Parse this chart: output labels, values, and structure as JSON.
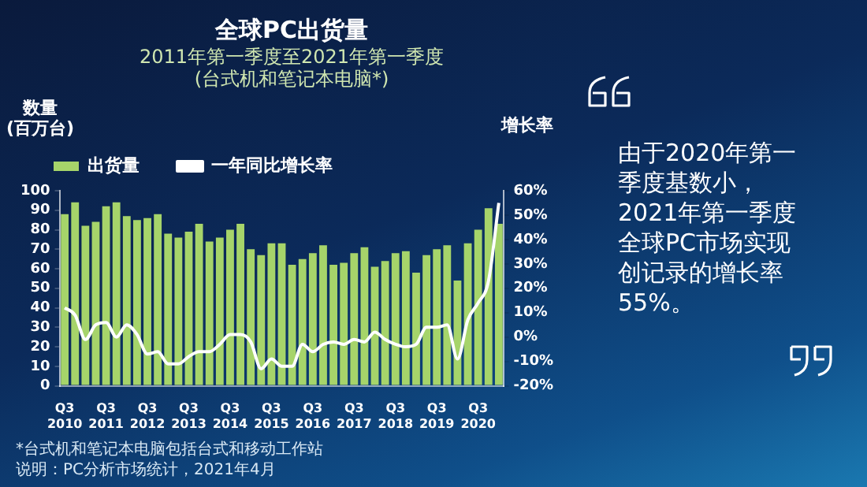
{
  "chart_data": {
    "type": "bar",
    "title": "全球PC出货量",
    "subtitle": "2011年第一季度至2021年第一季度\n(台式机和笔记本电脑*)",
    "ylabel": "数量\n(百万台)",
    "y2label": "增长率",
    "categories": [
      "Q3 2010",
      null,
      null,
      null,
      "Q3 2011",
      null,
      null,
      null,
      "Q3 2012",
      null,
      null,
      null,
      "Q3 2013",
      null,
      null,
      null,
      "Q3 2014",
      null,
      null,
      null,
      "Q3 2015",
      null,
      null,
      null,
      "Q3 2016",
      null,
      null,
      null,
      "Q3 2017",
      null,
      null,
      null,
      "Q3 2018",
      null,
      null,
      null,
      "Q3 2019",
      null,
      null,
      null,
      "Q3 2020",
      null,
      null
    ],
    "series": [
      {
        "name": "出货量",
        "color": "#a6d46a",
        "values": [
          88,
          94,
          82,
          84,
          92,
          94,
          87,
          85,
          86,
          88,
          78,
          76,
          79,
          83,
          74,
          76,
          80,
          83,
          70,
          67,
          73,
          73,
          62,
          65,
          68,
          72,
          62,
          63,
          68,
          71,
          61,
          64,
          68,
          69,
          58,
          67,
          70,
          72,
          54,
          73,
          80,
          91,
          83
        ]
      },
      {
        "name": "一年同比增长率",
        "type": "line",
        "axis": "y2",
        "color": "#ffffff",
        "values": [
          12,
          9,
          -1,
          5,
          6,
          0,
          5,
          1,
          -7,
          -6,
          -11,
          -11,
          -8,
          -6,
          -6,
          -3,
          1,
          1,
          -2,
          -13,
          -9,
          -12,
          -12,
          -3,
          -6,
          -3,
          -2,
          -3,
          -1,
          -2,
          2,
          -1,
          -3,
          -4,
          -3,
          4,
          4,
          5,
          -9,
          7,
          14,
          23,
          55
        ]
      }
    ],
    "ylim": [
      0,
      100
    ],
    "yticks": [
      0,
      10,
      20,
      30,
      40,
      50,
      60,
      70,
      80,
      90,
      100
    ],
    "y2lim": [
      -20,
      60
    ],
    "y2ticks": [
      {
        "value": -20,
        "label": "-20%"
      },
      {
        "value": -10,
        "label": "-10%"
      },
      {
        "value": 0,
        "label": "0%"
      },
      {
        "value": 10,
        "label": "10%"
      },
      {
        "value": 20,
        "label": "20%"
      },
      {
        "value": 30,
        "label": "30%"
      },
      {
        "value": 40,
        "label": "40%"
      },
      {
        "value": 50,
        "label": "50%"
      },
      {
        "value": 60,
        "label": "60%"
      }
    ],
    "grid": false,
    "legend": "top",
    "marker": "none",
    "annotations": [
      "由于2020年第一季度基数小，2021年第一季度全球PC市场实现创记录的增长率55%。",
      "*台式机和笔记本电脑包括台式和移动工作站",
      "说明：PC分析市场统计，2021年4月"
    ]
  }
}
